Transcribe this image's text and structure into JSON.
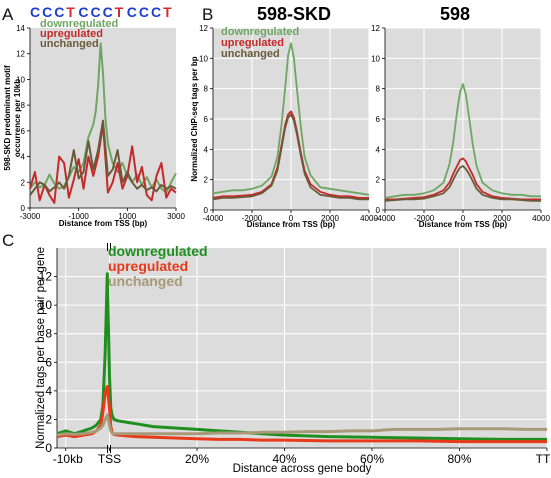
{
  "panel_letters": [
    "A",
    "B",
    "C"
  ],
  "motif": {
    "letters": [
      {
        "ch": "C",
        "color": "#1a3fcf"
      },
      {
        "ch": "C",
        "color": "#1a3fcf"
      },
      {
        "ch": "C",
        "color": "#1a3fcf"
      },
      {
        "ch": "T",
        "color": "#d42a2a"
      },
      {
        "ch": "C",
        "color": "#1a3fcf"
      },
      {
        "ch": "C",
        "color": "#1a3fcf"
      },
      {
        "ch": "C",
        "color": "#1a3fcf"
      },
      {
        "ch": "T",
        "color": "#d42a2a"
      },
      {
        "ch": "C",
        "color": "#1a3fcf"
      },
      {
        "ch": "C",
        "color": "#1a3fcf"
      },
      {
        "ch": "C",
        "color": "#1a3fcf"
      },
      {
        "ch": "T",
        "color": "#d42a2a"
      }
    ]
  },
  "colors": {
    "down_light": "#6fa663",
    "up_light": "#c42a2a",
    "unch_light": "#6b5a3a",
    "down_c": "#1f8f1f",
    "up_c": "#e8391b",
    "unch_c": "#a89a78",
    "plot_bg": "#dcdcdc",
    "grid": "#ffffff"
  },
  "chart_data": [
    {
      "id": "A",
      "type": "line",
      "title": "",
      "xlabel": "Distance from TSS (bp)",
      "ylabel": "598-SKD predominant motif occurrence per 10kb",
      "xlim": [
        -3000,
        3000
      ],
      "ylim": [
        0,
        14
      ],
      "x_ticks": [
        -3000,
        -1000,
        1000,
        3000
      ],
      "x_tick_labels": [
        "-3000",
        "-1000",
        "1000",
        "3000"
      ],
      "y_ticks": [
        0,
        2,
        4,
        6,
        8,
        10,
        12,
        14
      ],
      "y_tick_labels": [
        "0",
        "2",
        "4",
        "6",
        "8",
        "10",
        "12",
        "14"
      ],
      "legend": {
        "placement": "top-left",
        "entries": [
          "downregulated",
          "upregulated",
          "unchanged"
        ]
      },
      "series": [
        {
          "name": "downregulated",
          "color": "#6fa663",
          "x": [
            -3000,
            -2800,
            -2600,
            -2400,
            -2200,
            -2000,
            -1800,
            -1600,
            -1400,
            -1200,
            -1000,
            -800,
            -600,
            -400,
            -300,
            -200,
            -100,
            0,
            100,
            200,
            400,
            600,
            800,
            1000,
            1200,
            1400,
            1600,
            1800,
            2000,
            2200,
            2400,
            2600,
            2800,
            3000
          ],
          "y": [
            1.5,
            2.0,
            1.6,
            1.8,
            2.6,
            1.9,
            1.5,
            1.7,
            2.4,
            3.2,
            2.8,
            3.5,
            5.5,
            6.5,
            7.5,
            9.5,
            12.8,
            10.5,
            7.0,
            5.0,
            3.5,
            2.8,
            3.5,
            2.5,
            2.0,
            2.6,
            1.8,
            2.4,
            1.6,
            2.2,
            1.5,
            1.2,
            2.0,
            2.7
          ]
        },
        {
          "name": "upregulated",
          "color": "#c42a2a",
          "x": [
            -3000,
            -2800,
            -2600,
            -2400,
            -2200,
            -2000,
            -1800,
            -1600,
            -1400,
            -1200,
            -1000,
            -800,
            -600,
            -400,
            -200,
            0,
            200,
            400,
            600,
            800,
            1000,
            1200,
            1400,
            1600,
            1800,
            2000,
            2200,
            2400,
            2600,
            2800,
            3000
          ],
          "y": [
            1.5,
            2.8,
            0.6,
            1.8,
            1.0,
            0.4,
            4.0,
            3.5,
            0.8,
            2.2,
            3.8,
            1.5,
            4.0,
            2.5,
            4.0,
            6.5,
            1.2,
            2.0,
            3.5,
            1.5,
            2.5,
            4.8,
            2.0,
            3.2,
            1.0,
            0.6,
            2.5,
            3.5,
            0.8,
            1.5,
            1.2
          ]
        },
        {
          "name": "unchanged",
          "color": "#6b5a3a",
          "x": [
            -3000,
            -2800,
            -2600,
            -2400,
            -2200,
            -2000,
            -1800,
            -1600,
            -1400,
            -1200,
            -1000,
            -800,
            -600,
            -400,
            -200,
            0,
            200,
            400,
            600,
            800,
            1000,
            1200,
            1400,
            1600,
            1800,
            2000,
            2200,
            2400,
            2600,
            2800,
            3000
          ],
          "y": [
            1.0,
            1.5,
            2.0,
            1.8,
            1.3,
            1.6,
            2.0,
            1.5,
            2.5,
            4.5,
            2.3,
            2.8,
            5.2,
            3.0,
            4.5,
            6.8,
            2.5,
            3.0,
            4.5,
            2.0,
            2.8,
            2.0,
            1.5,
            1.8,
            1.4,
            1.6,
            1.3,
            1.8,
            1.5,
            1.7,
            1.5
          ]
        }
      ]
    },
    {
      "id": "B1",
      "type": "line",
      "title": "598-SKD",
      "xlabel": "Distance from TSS (bp)",
      "ylabel": "Normalized ChIP-seq tags per bp",
      "xlim": [
        -4000,
        4000
      ],
      "ylim": [
        0,
        12
      ],
      "x_ticks": [
        -4000,
        -2000,
        0,
        2000,
        4000
      ],
      "x_tick_labels": [
        "-4000",
        "-2000",
        "0",
        "2000",
        "4000"
      ],
      "y_ticks": [
        0,
        2,
        4,
        6,
        8,
        10,
        12
      ],
      "y_tick_labels": [
        "0",
        "2",
        "4",
        "6",
        "8",
        "10",
        "12"
      ],
      "legend": {
        "placement": "top-left",
        "entries": [
          "downregulated",
          "upregulated",
          "unchanged"
        ]
      },
      "series": [
        {
          "name": "downregulated",
          "color": "#6fa663",
          "x": [
            -4000,
            -3500,
            -3000,
            -2500,
            -2000,
            -1500,
            -1000,
            -700,
            -500,
            -300,
            -150,
            0,
            150,
            300,
            500,
            700,
            1000,
            1500,
            2000,
            2500,
            3000,
            3500,
            4000
          ],
          "y": [
            1.1,
            1.2,
            1.3,
            1.3,
            1.4,
            1.6,
            2.2,
            3.5,
            5.5,
            8.0,
            10.2,
            11.0,
            10.0,
            8.0,
            5.5,
            3.5,
            2.3,
            1.5,
            1.4,
            1.3,
            1.2,
            1.1,
            1.0
          ]
        },
        {
          "name": "upregulated",
          "color": "#c42a2a",
          "x": [
            -4000,
            -3500,
            -3000,
            -2500,
            -2000,
            -1500,
            -1000,
            -700,
            -500,
            -300,
            -150,
            0,
            150,
            300,
            500,
            700,
            1000,
            1500,
            2000,
            2500,
            3000,
            3500,
            4000
          ],
          "y": [
            0.8,
            0.9,
            0.9,
            0.95,
            1.0,
            1.2,
            1.7,
            2.8,
            4.2,
            5.6,
            6.3,
            6.5,
            6.1,
            5.2,
            3.8,
            2.6,
            1.7,
            1.2,
            1.0,
            0.9,
            0.9,
            0.8,
            0.8
          ]
        },
        {
          "name": "unchanged",
          "color": "#6b5a3a",
          "x": [
            -4000,
            -3500,
            -3000,
            -2500,
            -2000,
            -1500,
            -1000,
            -700,
            -500,
            -300,
            -150,
            0,
            150,
            300,
            500,
            700,
            1000,
            1500,
            2000,
            2500,
            3000,
            3500,
            4000
          ],
          "y": [
            0.7,
            0.8,
            0.8,
            0.85,
            0.9,
            1.1,
            1.6,
            2.6,
            4.0,
            5.4,
            6.1,
            6.3,
            5.9,
            5.0,
            3.6,
            2.4,
            1.5,
            1.0,
            0.9,
            0.8,
            0.8,
            0.7,
            0.7
          ]
        }
      ]
    },
    {
      "id": "B2",
      "type": "line",
      "title": "598",
      "xlabel": "Distance from TSS (bp)",
      "ylabel": "",
      "xlim": [
        -4000,
        4000
      ],
      "ylim": [
        0,
        12
      ],
      "x_ticks": [
        -4000,
        -2000,
        0,
        2000,
        4000
      ],
      "x_tick_labels": [
        "-4000",
        "-2000",
        "0",
        "2000",
        "4000"
      ],
      "y_ticks": [
        0,
        2,
        4,
        6,
        8,
        10,
        12
      ],
      "y_tick_labels": [
        "0",
        "2",
        "4",
        "6",
        "8",
        "10",
        "12"
      ],
      "series": [
        {
          "name": "downregulated",
          "color": "#6fa663",
          "x": [
            -4000,
            -3500,
            -3000,
            -2500,
            -2000,
            -1500,
            -1000,
            -700,
            -500,
            -300,
            -150,
            0,
            150,
            300,
            500,
            700,
            1000,
            1500,
            2000,
            2500,
            3000,
            3500,
            4000
          ],
          "y": [
            0.8,
            0.9,
            1.0,
            1.0,
            1.1,
            1.3,
            1.8,
            3.0,
            4.5,
            6.5,
            7.8,
            8.3,
            7.6,
            6.2,
            4.3,
            2.9,
            1.8,
            1.3,
            1.1,
            1.0,
            1.0,
            0.9,
            0.9
          ]
        },
        {
          "name": "upregulated",
          "color": "#c42a2a",
          "x": [
            -4000,
            -3500,
            -3000,
            -2500,
            -2000,
            -1500,
            -1000,
            -700,
            -500,
            -300,
            -150,
            0,
            150,
            300,
            500,
            700,
            1000,
            1500,
            2000,
            2500,
            3000,
            3500,
            4000
          ],
          "y": [
            0.7,
            0.7,
            0.75,
            0.8,
            0.85,
            1.0,
            1.3,
            1.8,
            2.4,
            2.9,
            3.3,
            3.4,
            3.2,
            2.8,
            2.3,
            1.7,
            1.2,
            0.9,
            0.8,
            0.75,
            0.7,
            0.7,
            0.7
          ]
        },
        {
          "name": "unchanged",
          "color": "#6b5a3a",
          "x": [
            -4000,
            -3500,
            -3000,
            -2500,
            -2000,
            -1500,
            -1000,
            -700,
            -500,
            -300,
            -150,
            0,
            150,
            300,
            500,
            700,
            1000,
            1500,
            2000,
            2500,
            3000,
            3500,
            4000
          ],
          "y": [
            0.6,
            0.65,
            0.7,
            0.7,
            0.75,
            0.9,
            1.1,
            1.5,
            2.0,
            2.5,
            2.8,
            2.9,
            2.7,
            2.4,
            1.9,
            1.4,
            1.0,
            0.8,
            0.7,
            0.7,
            0.65,
            0.6,
            0.6
          ]
        }
      ]
    },
    {
      "id": "C",
      "type": "line",
      "title": "",
      "xlabel": "Distance across gene body",
      "ylabel": "Normalized tags per base pair per gene",
      "xlim": [
        -12,
        100
      ],
      "ylim": [
        0,
        14
      ],
      "x_ticks": [
        -10,
        0,
        20,
        40,
        60,
        80,
        100
      ],
      "x_tick_labels": [
        "-10kb",
        "TSS",
        "20%",
        "40%",
        "60%",
        "80%",
        "TTS"
      ],
      "y_ticks": [
        0,
        2,
        4,
        6,
        8,
        10,
        12
      ],
      "y_tick_labels": [
        "0",
        "2",
        "4",
        "6",
        "8",
        "10",
        "12"
      ],
      "legend": {
        "placement": "top-left",
        "entries": [
          "downregulated",
          "upregulated",
          "unchanged"
        ]
      },
      "series": [
        {
          "name": "downregulated",
          "color": "#1f8f1f",
          "x": [
            -12,
            -10,
            -8,
            -6,
            -4,
            -3,
            -2,
            -1.5,
            -1,
            -0.5,
            0,
            0.3,
            0.6,
            1,
            2,
            4,
            6,
            10,
            15,
            20,
            25,
            30,
            35,
            40,
            50,
            60,
            70,
            80,
            90,
            100
          ],
          "y": [
            1.0,
            1.2,
            1.0,
            1.2,
            1.4,
            1.6,
            2.0,
            3.0,
            6.5,
            12.2,
            5.0,
            2.8,
            2.3,
            2.0,
            1.9,
            1.8,
            1.7,
            1.5,
            1.4,
            1.3,
            1.2,
            1.1,
            1.0,
            0.9,
            0.8,
            0.75,
            0.7,
            0.65,
            0.6,
            0.6
          ]
        },
        {
          "name": "upregulated",
          "color": "#e8391b",
          "x": [
            -12,
            -10,
            -8,
            -6,
            -4,
            -3,
            -2,
            -1.5,
            -1,
            -0.5,
            0,
            0.3,
            0.6,
            1,
            2,
            4,
            6,
            10,
            15,
            20,
            25,
            30,
            35,
            40,
            50,
            60,
            70,
            80,
            90,
            100
          ],
          "y": [
            0.8,
            0.9,
            0.8,
            0.9,
            1.0,
            1.2,
            1.6,
            2.5,
            3.8,
            4.3,
            2.8,
            1.5,
            1.1,
            0.95,
            0.9,
            0.85,
            0.8,
            0.75,
            0.7,
            0.65,
            0.6,
            0.6,
            0.55,
            0.55,
            0.5,
            0.5,
            0.5,
            0.45,
            0.45,
            0.45
          ]
        },
        {
          "name": "unchanged",
          "color": "#a89a78",
          "x": [
            -12,
            -10,
            -8,
            -6,
            -4,
            -3,
            -2,
            -1.5,
            -1,
            -0.5,
            0,
            0.3,
            0.6,
            1,
            2,
            4,
            6,
            10,
            15,
            20,
            25,
            30,
            35,
            40,
            45,
            50,
            55,
            60,
            65,
            70,
            75,
            80,
            85,
            90,
            95,
            100
          ],
          "y": [
            0.9,
            1.0,
            0.95,
            1.0,
            1.1,
            1.2,
            1.4,
            1.6,
            2.0,
            2.3,
            1.6,
            1.2,
            1.05,
            1.0,
            1.0,
            1.0,
            1.0,
            1.0,
            1.0,
            1.0,
            1.05,
            1.05,
            1.1,
            1.1,
            1.15,
            1.15,
            1.2,
            1.2,
            1.3,
            1.3,
            1.3,
            1.35,
            1.35,
            1.35,
            1.3,
            1.3
          ]
        }
      ]
    }
  ]
}
